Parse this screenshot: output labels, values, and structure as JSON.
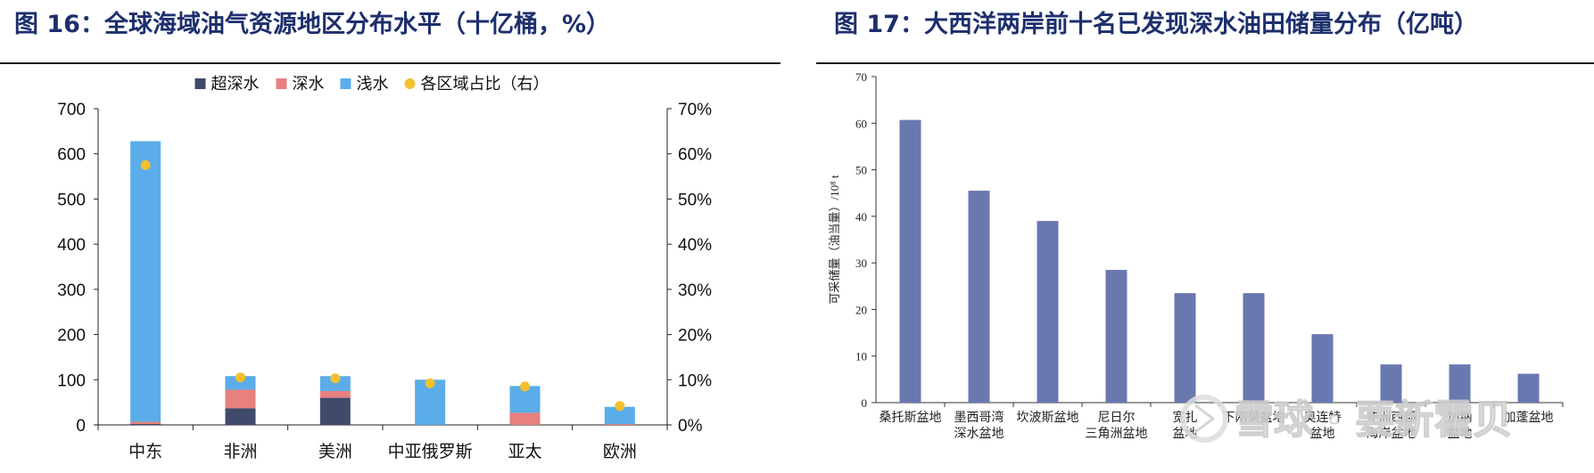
{
  "figures": [
    {
      "caption": "图 16：全球海域油气资源地区分布水平（十亿桶，%）"
    },
    {
      "caption": "图 17：大西洋两岸前十名已发现深水油田储量分布（亿吨）"
    }
  ],
  "watermark": "雪球 · 要新霍贝",
  "chart_data": [
    {
      "type": "bar",
      "stacked": true,
      "title": "",
      "categories": [
        "中东",
        "非洲",
        "美洲",
        "中亚俄罗斯",
        "亚太",
        "欧洲"
      ],
      "series": [
        {
          "name": "超深水",
          "color": "#404a6b",
          "values": [
            2,
            37,
            60,
            0,
            0,
            0
          ]
        },
        {
          "name": "深水",
          "color": "#e88080",
          "values": [
            5,
            41,
            15,
            0,
            27,
            2
          ]
        },
        {
          "name": "浅水",
          "color": "#5aade8",
          "values": [
            621,
            30,
            33,
            100,
            59,
            38
          ]
        }
      ],
      "secondary_series": {
        "name": "各区域占比（右）",
        "type": "scatter",
        "axis": "right",
        "color": "#f2c030",
        "values": [
          57.5,
          10.5,
          10.3,
          9.2,
          8.5,
          4.2
        ]
      },
      "yaxis_left": {
        "min": 0,
        "max": 700,
        "ticks": [
          "0",
          "100",
          "200",
          "300",
          "400",
          "500",
          "600",
          "700"
        ]
      },
      "yaxis_right": {
        "min": 0,
        "max": 70,
        "ticks": [
          "0%",
          "10%",
          "20%",
          "30%",
          "40%",
          "50%",
          "60%",
          "70%"
        ]
      },
      "legend_position": "top",
      "grid": false
    },
    {
      "type": "bar",
      "title": "",
      "ylabel": "可采储量（油当量）/10⁸ t",
      "categories": [
        [
          "桑托斯盆地"
        ],
        [
          "墨西哥湾",
          "深水盆地"
        ],
        [
          "坎波斯盆地"
        ],
        [
          "尼日尔",
          "三角洲盆地"
        ],
        [
          "宽扎",
          "盆地"
        ],
        [
          "下刚果盆地"
        ],
        [
          "奥连特",
          "盆地"
        ],
        [
          "非洲西部",
          "海岸盆地"
        ],
        [
          "加纳",
          "盆地"
        ],
        [
          "加蓬盆地"
        ]
      ],
      "values": [
        60.7,
        45.5,
        39,
        28.5,
        23.5,
        23.5,
        14.7,
        8.2,
        8.2,
        6.2
      ],
      "color": "#6a78b0",
      "ylim": [
        0,
        70
      ],
      "yticks": [
        "0",
        "10",
        "20",
        "30",
        "40",
        "50",
        "60",
        "70"
      ],
      "grid": false
    }
  ]
}
